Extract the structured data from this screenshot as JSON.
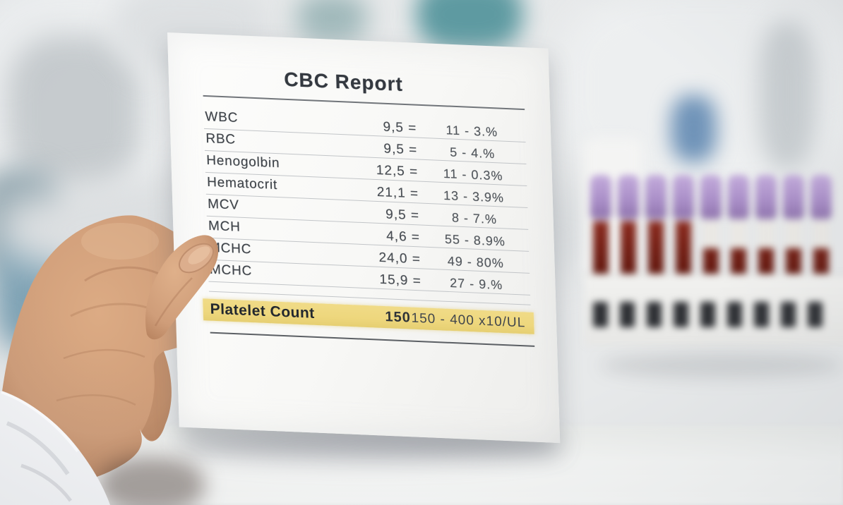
{
  "scene": {
    "description": "Hand in a white lab-coat sleeve holding a printed CBC blood test report in a blurred laboratory; rack of blood collection tubes with purple caps on the right",
    "tube_count": 9
  },
  "report": {
    "title": "CBC Report",
    "rows": [
      {
        "label": "WBC",
        "value": "9,5 =",
        "range": "11 - 3.%"
      },
      {
        "label": "RBC",
        "value": "9,5 =",
        "range": "5 - 4.%"
      },
      {
        "label": "Henogolbin",
        "value": "12,5 =",
        "range": "11 - 0.3%"
      },
      {
        "label": "Hematocrit",
        "value": "21,1 =",
        "range": "13 - 3.9%"
      },
      {
        "label": "MCV",
        "value": "9,5 =",
        "range": "8 - 7.%"
      },
      {
        "label": "MCH",
        "value": "4,6 =",
        "range": "55 - 8.9%"
      },
      {
        "label": "MCHC",
        "value": "24,0 =",
        "range": "49 - 80%"
      },
      {
        "label": "MCHC",
        "value": "15,9 =",
        "range": "27 - 9.%"
      }
    ],
    "highlight_row": {
      "label": "Platelet Count",
      "value": "150",
      "range": "150 - 400 x10/UL"
    }
  },
  "colors": {
    "highlight": "#eed77d",
    "cap-purple": "#ab90c9",
    "blood-red": "#63180f",
    "paper": "#f8f8f6",
    "skin": "#cf9d79",
    "skin-deep": "#b07a55",
    "sleeve": "#f4f5f7"
  }
}
